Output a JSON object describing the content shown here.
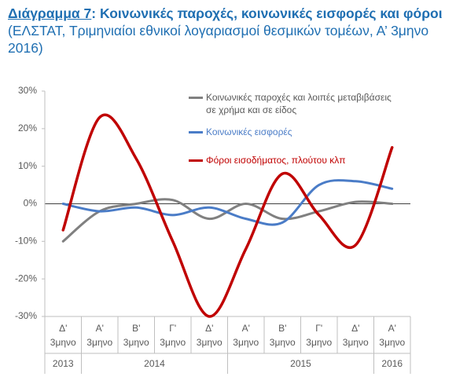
{
  "chart_data": {
    "type": "line",
    "title_label": "Διάγραμμα 7",
    "title": ": Κοινωνικές παροχές, κοινωνικές εισφορές και φόροι",
    "subtitle": "(ΕΛΣΤΑΤ, Τριμηνιαίοι εθνικοί λογαριασμοί θεσμικών τομέων, Α’ 3μηνο 2016)",
    "categories": [
      {
        "quarter": "Δ'",
        "period": "3μηνο",
        "year": "2013"
      },
      {
        "quarter": "Α'",
        "period": "3μηνο",
        "year": "2014"
      },
      {
        "quarter": "Β'",
        "period": "3μηνο",
        "year": "2014"
      },
      {
        "quarter": "Γ'",
        "period": "3μηνο",
        "year": "2014"
      },
      {
        "quarter": "Δ'",
        "period": "3μηνο",
        "year": "2014"
      },
      {
        "quarter": "Α'",
        "period": "3μηνο",
        "year": "2015"
      },
      {
        "quarter": "Β'",
        "period": "3μηνο",
        "year": "2015"
      },
      {
        "quarter": "Γ'",
        "period": "3μηνο",
        "year": "2015"
      },
      {
        "quarter": "Δ'",
        "period": "3μηνο",
        "year": "2015"
      },
      {
        "quarter": "Α'",
        "period": "3μηνο",
        "year": "2016"
      }
    ],
    "series": [
      {
        "name": "Κοινωνικές παροχές και λοιπές μεταβιβάσεις σε χρήμα και σε είδος",
        "color": "#808080",
        "values": [
          -10,
          -2,
          0,
          1,
          -4,
          0,
          -4,
          -2,
          0.5,
          0
        ]
      },
      {
        "name": "Κοινωνικές εισφορές",
        "color": "#4a7cc7",
        "values": [
          0,
          -2,
          -1,
          -3,
          -1,
          -4,
          -5,
          5,
          6,
          4
        ]
      },
      {
        "name": "Φόροι εισοδήματος, πλούτου κλπ",
        "color": "#c00000",
        "values": [
          -7,
          23,
          12,
          -10,
          -30,
          -12,
          8,
          -3,
          -11,
          15
        ]
      }
    ],
    "ylim": [
      -30,
      30
    ],
    "yticks": [
      {
        "value": -30,
        "label": "-30%"
      },
      {
        "value": -20,
        "label": "-20%"
      },
      {
        "value": -10,
        "label": "-10%"
      },
      {
        "value": 0,
        "label": "0%"
      },
      {
        "value": 10,
        "label": "10%"
      },
      {
        "value": 20,
        "label": "20%"
      },
      {
        "value": 30,
        "label": "30%"
      }
    ]
  }
}
